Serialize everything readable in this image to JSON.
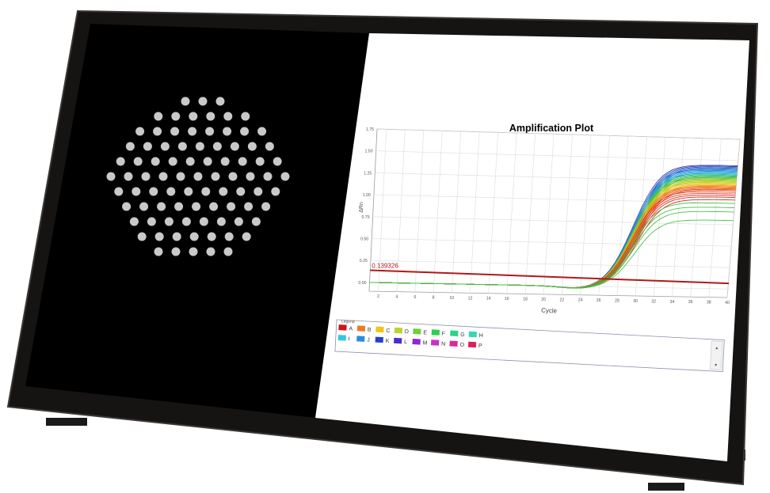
{
  "device": {
    "bezel_color": "#161413",
    "left_panel_color": "#000000",
    "right_panel_color": "#ffffff"
  },
  "well_image": {
    "rows": [
      3,
      6,
      8,
      9,
      10,
      11,
      10,
      9,
      8,
      7,
      5
    ],
    "well_color": "#c9c9c9"
  },
  "chart_data": {
    "type": "line",
    "title": "Amplification Plot",
    "xlabel": "Cycle",
    "ylabel": "ΔRn",
    "xlim": [
      1,
      40
    ],
    "ylim": [
      -0.1,
      1.75
    ],
    "x_ticks": [
      2,
      4,
      6,
      8,
      10,
      12,
      14,
      16,
      18,
      20,
      22,
      24,
      26,
      28,
      30,
      32,
      34,
      36,
      38,
      40
    ],
    "y_ticks": [
      {
        "value": 0.0,
        "label": "0.00"
      },
      {
        "value": 0.25,
        "label": "0.25"
      },
      {
        "value": 0.5,
        "label": "0.50"
      },
      {
        "value": 0.75,
        "label": "0.75"
      },
      {
        "value": 1.0,
        "label": "1.00"
      },
      {
        "value": 1.25,
        "label": "1.25"
      },
      {
        "value": 1.5,
        "label": "1.50"
      },
      {
        "value": 1.75,
        "label": "1.75"
      }
    ],
    "grid": true,
    "threshold": {
      "value": 0.139326,
      "label": "0.139326",
      "color": "#b01818"
    },
    "curves": {
      "midpoint_cycle": 29.5,
      "plateaus": [
        1.44,
        1.43,
        1.42,
        1.41,
        1.4,
        1.39,
        1.38,
        1.37,
        1.36,
        1.35,
        1.34,
        1.33,
        1.32,
        1.31,
        1.3,
        1.29,
        1.28,
        1.27,
        1.26,
        1.25,
        1.24,
        1.23,
        1.22,
        1.21,
        1.2,
        1.19,
        1.18,
        1.17,
        1.16,
        1.15,
        1.13,
        1.11,
        1.09,
        1.07,
        1.04,
        1.0,
        0.95,
        0.9,
        0.8
      ],
      "colors": [
        "#2a3fb8",
        "#2f57c9",
        "#2a73d6",
        "#1f8fd9",
        "#21a6c9",
        "#22b5a0",
        "#26b86a",
        "#36b93b",
        "#6cc12b",
        "#9ccb22",
        "#c7cf1c",
        "#e4c51a",
        "#f0a61b",
        "#f0871c",
        "#ec681d",
        "#e64b1e",
        "#de341e",
        "#d32a1e",
        "#c7251e"
      ]
    }
  },
  "legend": {
    "title": "Legend",
    "rows": [
      [
        {
          "label": "A",
          "color": "#c8161c"
        },
        {
          "label": "B",
          "color": "#ec7a26"
        },
        {
          "label": "C",
          "color": "#f3c316"
        },
        {
          "label": "D",
          "color": "#b5d62a"
        },
        {
          "label": "E",
          "color": "#6fd13a"
        },
        {
          "label": "F",
          "color": "#2dcf52"
        },
        {
          "label": "G",
          "color": "#2bd48a"
        },
        {
          "label": "H",
          "color": "#35d6b5"
        }
      ],
      [
        {
          "label": "I",
          "color": "#33c8de"
        },
        {
          "label": "J",
          "color": "#2a8be0"
        },
        {
          "label": "K",
          "color": "#2340cf"
        },
        {
          "label": "L",
          "color": "#4e2ad0"
        },
        {
          "label": "M",
          "color": "#8a2ad2"
        },
        {
          "label": "N",
          "color": "#c92fcf"
        },
        {
          "label": "O",
          "color": "#d62a9e"
        },
        {
          "label": "P",
          "color": "#d8245a"
        }
      ]
    ]
  }
}
